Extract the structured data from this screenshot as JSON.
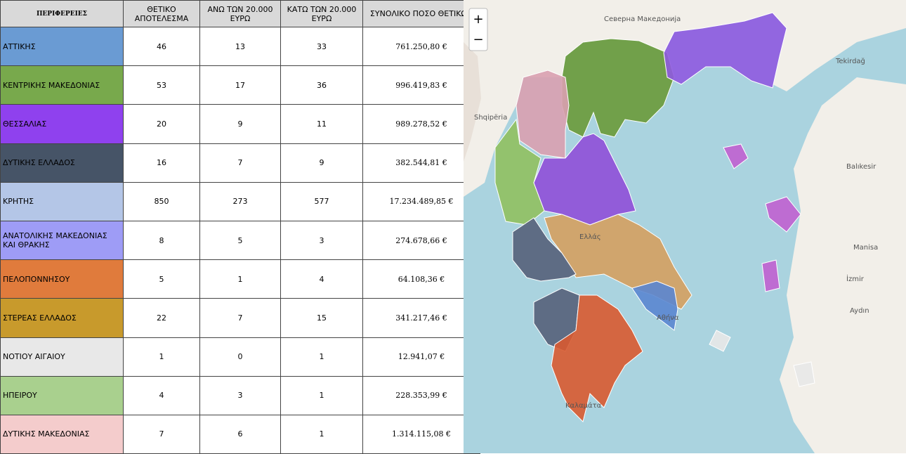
{
  "table": {
    "header": [
      "ΠΕΡΙΦΕΡΕΙΕΣ",
      "ΘΕΤΙΚΟ ΑΠΟΤΕΛΕΣΜΑ",
      "ΑΝΩ ΤΩΝ 20.000 ΕΥΡΩ",
      "ΚΑΤΩ ΤΩΝ 20.000 ΕΥΡΩ",
      "ΣΥΝΟΛΙΚΟ ΠΟΣΟ ΘΕΤΙΚΩΝ"
    ],
    "rows": [
      {
        "color": "#6a9bd3",
        "cells": [
          "ΑΤΤΙΚΗΣ",
          "46",
          "13",
          "33",
          "761.250,80 €"
        ]
      },
      {
        "color": "#78a94c",
        "cells": [
          "ΚΕΝΤΡΙΚΗΣ  ΜΑΚΕΔΟΝΙΑΣ",
          "53",
          "17",
          "36",
          "996.419,83 €"
        ]
      },
      {
        "color": "#8f41ee",
        "cells": [
          "ΘΕΣΣΑΛΙΑΣ",
          "20",
          "9",
          "11",
          "989.278,52 €"
        ]
      },
      {
        "color": "#465467",
        "cells": [
          "ΔΥΤΙΚΗΣ ΕΛΛΑΔΟΣ",
          "16",
          "7",
          "9",
          "382.544,81 €"
        ]
      },
      {
        "color": "#b4c6e7",
        "cells": [
          "ΚΡΗΤΗΣ",
          "850",
          "273",
          "577",
          "17.234.489,85 €"
        ]
      },
      {
        "color": "#9e9cf6",
        "cells": [
          "ΑΝΑΤΟΛΙΚΗΣ ΜΑΚΕΔΟΝΙΑΣ ΚΑΙ ΘΡΑΚΗΣ",
          "8",
          "5",
          "3",
          "274.678,66 €"
        ]
      },
      {
        "color": "#e07b3c",
        "cells": [
          "ΠΕΛΟΠΟΝΝΗΣΟΥ",
          "5",
          "1",
          "4",
          "64.108,36 €"
        ]
      },
      {
        "color": "#c89a2c",
        "cells": [
          "ΣΤΕΡΕΑΣ ΕΛΛΑΔΟΣ",
          "22",
          "7",
          "15",
          "341.217,46 €"
        ]
      },
      {
        "color": "#e8e8e8",
        "cells": [
          "ΝΟΤΙΟΥ ΑΙΓΑΙΟΥ",
          "1",
          "0",
          "1",
          "12.941,07 €"
        ]
      },
      {
        "color": "#a9d08e",
        "cells": [
          "ΗΠΕΙΡΟΥ",
          "4",
          "3",
          "1",
          "228.353,99 €"
        ]
      },
      {
        "color": "#f4cccc",
        "cells": [
          "ΔΥΤΙΚΗΣ ΜΑΚΕΔΟΝΙΑΣ",
          "7",
          "6",
          "1",
          "1.314.115,08 €"
        ]
      }
    ]
  },
  "map": {
    "zoom_in": "+",
    "zoom_out": "−",
    "labels": [
      "Северна Македонија",
      "Shqipëria",
      "Ελλάς",
      "Αθήνα",
      "Καλαμάτα",
      "Tekirdağ",
      "Balıkesir",
      "Manisa",
      "İzmir",
      "Aydın"
    ]
  }
}
